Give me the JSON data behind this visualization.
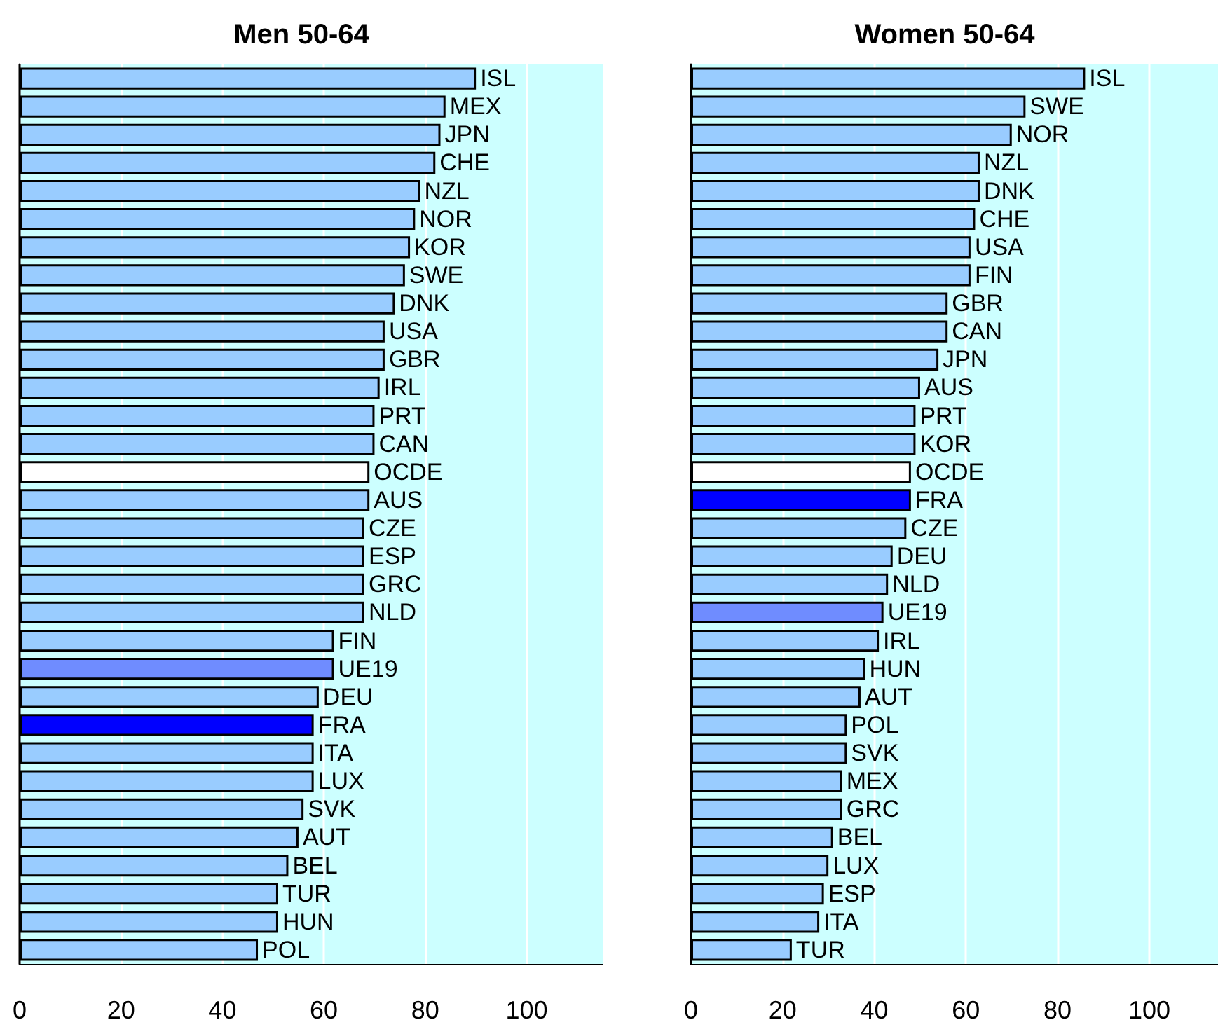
{
  "chart_data": [
    {
      "type": "bar",
      "title": "Men 50-64",
      "orientation": "horizontal",
      "categories": [
        "ISL",
        "MEX",
        "JPN",
        "CHE",
        "NZL",
        "NOR",
        "KOR",
        "SWE",
        "DNK",
        "USA",
        "GBR",
        "IRL",
        "PRT",
        "CAN",
        "OCDE",
        "AUS",
        "CZE",
        "ESP",
        "GRC",
        "NLD",
        "FIN",
        "UE19",
        "DEU",
        "FRA",
        "ITA",
        "LUX",
        "SVK",
        "AUT",
        "BEL",
        "TUR",
        "HUN",
        "POL"
      ],
      "values": [
        90,
        84,
        83,
        82,
        79,
        78,
        77,
        76,
        74,
        72,
        72,
        71,
        70,
        70,
        69,
        69,
        68,
        68,
        68,
        68,
        62,
        62,
        59,
        58,
        58,
        58,
        56,
        55,
        53,
        51,
        51,
        47
      ],
      "colors": [
        "#99ccff",
        "#99ccff",
        "#99ccff",
        "#99ccff",
        "#99ccff",
        "#99ccff",
        "#99ccff",
        "#99ccff",
        "#99ccff",
        "#99ccff",
        "#99ccff",
        "#99ccff",
        "#99ccff",
        "#99ccff",
        "#ffffff",
        "#99ccff",
        "#99ccff",
        "#99ccff",
        "#99ccff",
        "#99ccff",
        "#99ccff",
        "#6f8cff",
        "#99ccff",
        "#0000ff",
        "#99ccff",
        "#99ccff",
        "#99ccff",
        "#99ccff",
        "#99ccff",
        "#99ccff",
        "#99ccff",
        "#99ccff"
      ],
      "xlim": [
        0,
        115
      ],
      "xticks": [
        0,
        20,
        40,
        60,
        80,
        100
      ],
      "grid": "x",
      "tick_labels": "x"
    },
    {
      "type": "bar",
      "title": "Women 50-64",
      "orientation": "horizontal",
      "categories": [
        "ISL",
        "SWE",
        "NOR",
        "NZL",
        "DNK",
        "CHE",
        "USA",
        "FIN",
        "GBR",
        "CAN",
        "JPN",
        "AUS",
        "PRT",
        "KOR",
        "OCDE",
        "FRA",
        "CZE",
        "DEU",
        "NLD",
        "UE19",
        "IRL",
        "HUN",
        "AUT",
        "POL",
        "SVK",
        "MEX",
        "GRC",
        "BEL",
        "LUX",
        "ESP",
        "ITA",
        "TUR"
      ],
      "values": [
        86,
        73,
        70,
        63,
        63,
        62,
        61,
        61,
        56,
        56,
        54,
        50,
        49,
        49,
        48,
        48,
        47,
        44,
        43,
        42,
        41,
        38,
        37,
        34,
        34,
        33,
        33,
        31,
        30,
        29,
        28,
        22
      ],
      "colors": [
        "#99ccff",
        "#99ccff",
        "#99ccff",
        "#99ccff",
        "#99ccff",
        "#99ccff",
        "#99ccff",
        "#99ccff",
        "#99ccff",
        "#99ccff",
        "#99ccff",
        "#99ccff",
        "#99ccff",
        "#99ccff",
        "#ffffff",
        "#0000ff",
        "#99ccff",
        "#99ccff",
        "#99ccff",
        "#6f8cff",
        "#99ccff",
        "#99ccff",
        "#99ccff",
        "#99ccff",
        "#99ccff",
        "#99ccff",
        "#99ccff",
        "#99ccff",
        "#99ccff",
        "#99ccff",
        "#99ccff",
        "#99ccff"
      ],
      "xlim": [
        0,
        115
      ],
      "xticks": [
        0,
        20,
        40,
        60,
        80,
        100
      ],
      "grid": "x",
      "tick_labels": "x"
    }
  ]
}
